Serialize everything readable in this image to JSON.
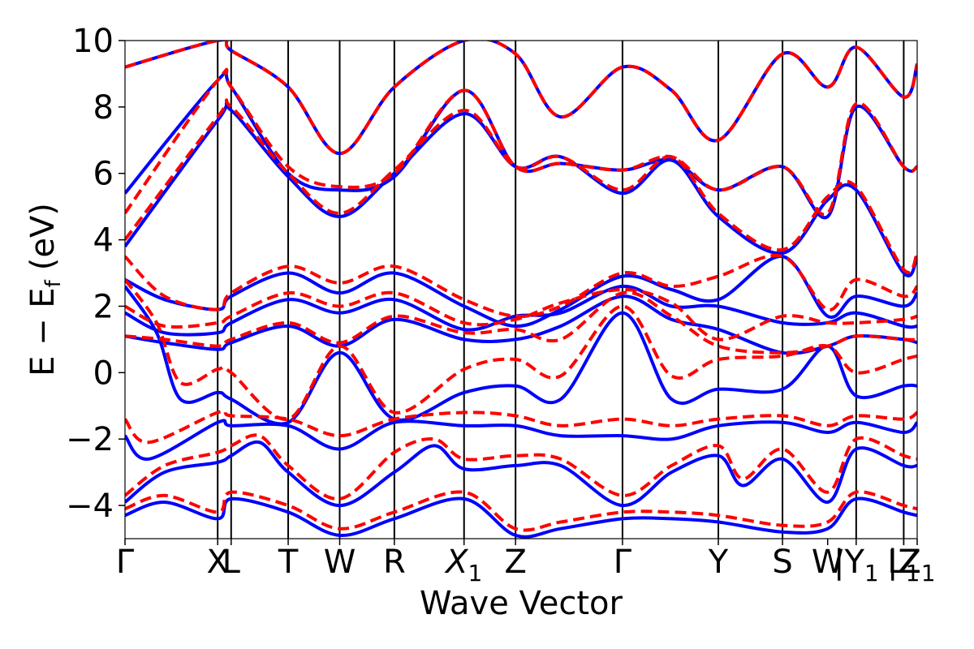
{
  "chart_data": {
    "type": "line",
    "title": "",
    "xlabel": "Wave Vector",
    "ylabel": "E − Ef (eV)",
    "ylabel_parts": {
      "main": "E − E",
      "sub": "f",
      "unit": "(eV)"
    },
    "ylim": [
      -5,
      10
    ],
    "y_ticks": [
      -4,
      -2,
      0,
      2,
      4,
      6,
      8,
      10
    ],
    "y_tick_labels": [
      "−4",
      "−2",
      "0",
      "2",
      "4",
      "6",
      "8",
      "10"
    ],
    "x_range": [
      0,
      100
    ],
    "high_symmetry_points": [
      {
        "label": "Γ",
        "x": 0
      },
      {
        "label": "X",
        "x": 11.7
      },
      {
        "label": "L",
        "x": 13.4
      },
      {
        "label": "T",
        "x": 20.6
      },
      {
        "label": "W",
        "x": 27.1
      },
      {
        "label": "R",
        "x": 34.0
      },
      {
        "label": "X",
        "sub": "1",
        "x": 42.8
      },
      {
        "label": "Z",
        "x": 49.3
      },
      {
        "label": "Γ",
        "x": 62.8
      },
      {
        "label": "Y",
        "x": 74.9
      },
      {
        "label": "S",
        "x": 83.0
      },
      {
        "label": "W",
        "x": 88.7
      },
      {
        "label": "|Y",
        "sub": "1",
        "x": 92.3
      },
      {
        "label": "L",
        "sub": "1",
        "x": 98.3
      },
      {
        "label": "|Z",
        "x": 98.3
      },
      {
        "label": "Z",
        "sub": "1",
        "x": 100
      }
    ],
    "vertical_lines_x": [
      11.7,
      13.4,
      20.6,
      27.1,
      34.0,
      42.8,
      49.3,
      62.8,
      74.9,
      83.0,
      92.3,
      98.3
    ],
    "series": [
      {
        "color": "#0000ff",
        "dash": false,
        "bands": [
          {
            "x": [
              0,
              5,
              11.7,
              13.4,
              20.6,
              27.1,
              34.0,
              42.8,
              49.3,
              55,
              62.8,
              69,
              74.9,
              83.0,
              88.7,
              92.3,
              98.3,
              100
            ],
            "y": [
              2.8,
              2.2,
              1.9,
              2.3,
              3.0,
              2.4,
              3.0,
              2.0,
              1.4,
              1.9,
              2.9,
              2.5,
              2.2,
              3.5,
              1.7,
              2.3,
              2.0,
              2.4
            ]
          },
          {
            "x": [
              0,
              5,
              11.7,
              13.4,
              20.6,
              27.1,
              34.0,
              42.8,
              49.3,
              55,
              62.8,
              69,
              74.9,
              83.0,
              88.7,
              92.3,
              98.3,
              100
            ],
            "y": [
              1.8,
              1.2,
              1.2,
              1.5,
              2.2,
              1.8,
              2.2,
              1.3,
              1.7,
              1.8,
              2.6,
              2.0,
              2.0,
              1.5,
              1.5,
              1.8,
              1.4,
              1.4
            ]
          },
          {
            "x": [
              0,
              5,
              11.7,
              13.4,
              20.6,
              27.1,
              34.0,
              42.8,
              49.3,
              55,
              62.8,
              69,
              74.9,
              83.0,
              88.7,
              92.3,
              98.3,
              100
            ],
            "y": [
              1.1,
              0.9,
              0.7,
              0.9,
              1.4,
              0.8,
              1.6,
              1.0,
              1.0,
              1.4,
              2.3,
              1.6,
              1.3,
              0.6,
              0.8,
              1.1,
              1.0,
              0.9
            ]
          },
          {
            "x": [
              0,
              4,
              7,
              11.7,
              13.4,
              20.6,
              27.1,
              34.0,
              42.8,
              49.3,
              55,
              62.8,
              69,
              74.9,
              83.0,
              88.7,
              92.3,
              98.3,
              100
            ],
            "y": [
              2.6,
              1.2,
              -0.8,
              -0.6,
              -0.8,
              -1.5,
              0.6,
              -1.4,
              -0.6,
              -0.4,
              -0.8,
              1.8,
              -0.8,
              -0.5,
              -0.5,
              0.8,
              -0.7,
              -0.4,
              -0.4
            ]
          },
          {
            "x": [
              0,
              3,
              11.7,
              13.4,
              20.6,
              27.1,
              34.0,
              42.8,
              49.3,
              55,
              62.8,
              69,
              74.9,
              83.0,
              88.7,
              92.3,
              98.3,
              100
            ],
            "y": [
              -1.9,
              -2.6,
              -1.5,
              -1.6,
              -1.6,
              -2.3,
              -1.5,
              -1.6,
              -1.6,
              -1.9,
              -1.9,
              -2.0,
              -1.6,
              -1.5,
              -1.8,
              -1.5,
              -1.8,
              -1.5
            ]
          },
          {
            "x": [
              0,
              5,
              11.7,
              13.4,
              17,
              20.6,
              27.1,
              34.0,
              39,
              42.8,
              49.3,
              55,
              62.8,
              69,
              74.9,
              78,
              83.0,
              88.7,
              92.3,
              98.3,
              100
            ],
            "y": [
              -3.9,
              -3.0,
              -2.7,
              -2.5,
              -2.1,
              -3.0,
              -4.0,
              -3.0,
              -2.2,
              -2.9,
              -2.8,
              -2.8,
              -4.0,
              -3.0,
              -2.5,
              -3.4,
              -2.6,
              -3.9,
              -2.3,
              -2.8,
              -2.8
            ]
          },
          {
            "x": [
              0,
              5,
              11.7,
              13.4,
              20.6,
              27.1,
              34.0,
              42.8,
              49.3,
              55,
              62.8,
              69,
              74.9,
              83.0,
              88.7,
              92.3,
              98.3,
              100
            ],
            "y": [
              -4.3,
              -3.9,
              -4.4,
              -3.8,
              -4.2,
              -4.9,
              -4.4,
              -3.8,
              -4.9,
              -4.7,
              -4.4,
              -4.4,
              -4.5,
              -4.8,
              -4.7,
              -3.8,
              -4.2,
              -4.3
            ]
          },
          {
            "x": [
              0,
              11.7,
              13.4,
              20.6,
              27.1,
              34.0,
              42.8,
              49.3,
              55,
              62.8,
              69,
              74.9,
              83.0,
              88.7,
              92.3,
              98.3,
              100
            ],
            "y": [
              3.8,
              7.6,
              7.9,
              5.9,
              4.7,
              6.0,
              7.8,
              6.2,
              6.5,
              5.4,
              6.4,
              4.7,
              3.6,
              5.2,
              5.5,
              3.0,
              3.5
            ]
          },
          {
            "x": [
              0,
              11.7,
              13.4,
              20.6,
              27.1,
              34.0,
              42.8,
              49.3,
              55,
              62.8,
              69,
              74.9,
              83.0,
              88.7,
              92.3,
              98.3,
              100
            ],
            "y": [
              5.4,
              8.8,
              8.6,
              6.0,
              5.5,
              5.9,
              8.5,
              6.2,
              6.3,
              6.1,
              6.4,
              5.5,
              6.2,
              4.7,
              8.0,
              6.2,
              6.2
            ]
          },
          {
            "x": [
              0,
              11.7,
              13.4,
              20.6,
              27.1,
              34.0,
              42.8,
              49.3,
              55,
              62.8,
              69,
              74.9,
              83.0,
              88.7,
              92.3,
              98.3,
              100
            ],
            "y": [
              9.2,
              10.0,
              9.7,
              8.6,
              6.6,
              8.6,
              10.0,
              9.6,
              7.7,
              9.2,
              8.5,
              7.0,
              9.6,
              8.6,
              9.8,
              8.3,
              9.3
            ]
          }
        ]
      },
      {
        "color": "#ff0000",
        "dash": true,
        "bands": [
          {
            "x": [
              0,
              5,
              11.7,
              13.4,
              20.6,
              27.1,
              34.0,
              42.8,
              49.3,
              55,
              62.8,
              69,
              74.9,
              83.0,
              88.7,
              92.3,
              98.3,
              100
            ],
            "y": [
              3.5,
              2.3,
              1.9,
              2.4,
              3.2,
              2.7,
              3.2,
              2.2,
              1.7,
              2.0,
              3.0,
              2.6,
              2.9,
              3.5,
              1.9,
              2.8,
              2.3,
              2.6
            ]
          },
          {
            "x": [
              0,
              5,
              11.7,
              13.4,
              20.6,
              27.1,
              34.0,
              42.8,
              49.3,
              55,
              62.8,
              69,
              74.9,
              83.0,
              88.7,
              92.3,
              98.3,
              100
            ],
            "y": [
              2.0,
              1.4,
              1.5,
              1.7,
              2.4,
              2.0,
              2.4,
              1.5,
              1.6,
              2.1,
              2.5,
              2.1,
              1.0,
              1.7,
              1.5,
              1.5,
              1.6,
              1.7
            ]
          },
          {
            "x": [
              0,
              5,
              11.7,
              13.4,
              20.6,
              27.1,
              34.0,
              42.8,
              49.3,
              55,
              62.8,
              69,
              74.9,
              83.0,
              88.7,
              92.3,
              98.3,
              100
            ],
            "y": [
              1.1,
              1.0,
              0.8,
              1.0,
              1.5,
              0.9,
              1.7,
              1.2,
              1.3,
              1.0,
              2.4,
              1.7,
              0.8,
              0.6,
              0.8,
              1.1,
              1.0,
              1.0
            ]
          },
          {
            "x": [
              0,
              4,
              7,
              11.7,
              13.4,
              20.6,
              27.1,
              34.0,
              42.8,
              49.3,
              55,
              62.8,
              69,
              74.9,
              83.0,
              88.7,
              92.3,
              98.3,
              100
            ],
            "y": [
              2.8,
              1.5,
              -0.3,
              0.1,
              0.0,
              -1.4,
              0.8,
              -1.2,
              0.1,
              0.4,
              -0.1,
              2.0,
              -0.1,
              0.4,
              0.5,
              0.8,
              0.0,
              0.4,
              0.5
            ]
          },
          {
            "x": [
              0,
              3,
              11.7,
              13.4,
              20.6,
              27.1,
              34.0,
              42.8,
              49.3,
              55,
              62.8,
              69,
              74.9,
              83.0,
              88.7,
              92.3,
              98.3,
              100
            ],
            "y": [
              -1.4,
              -2.1,
              -1.2,
              -1.3,
              -1.4,
              -1.9,
              -1.4,
              -1.2,
              -1.3,
              -1.6,
              -1.4,
              -1.6,
              -1.4,
              -1.3,
              -1.6,
              -1.3,
              -1.4,
              -1.2
            ]
          },
          {
            "x": [
              0,
              5,
              11.7,
              13.4,
              17,
              20.6,
              27.1,
              34.0,
              39,
              42.8,
              49.3,
              55,
              62.8,
              69,
              74.9,
              78,
              83.0,
              88.7,
              92.3,
              98.3,
              100
            ],
            "y": [
              -3.7,
              -2.8,
              -2.4,
              -2.2,
              -1.9,
              -2.8,
              -3.8,
              -2.4,
              -2.0,
              -2.6,
              -2.5,
              -2.6,
              -3.7,
              -2.8,
              -2.2,
              -3.2,
              -2.3,
              -3.6,
              -2.0,
              -2.5,
              -2.6
            ]
          },
          {
            "x": [
              0,
              5,
              11.7,
              13.4,
              20.6,
              27.1,
              34.0,
              42.8,
              49.3,
              55,
              62.8,
              69,
              74.9,
              83.0,
              88.7,
              92.3,
              98.3,
              100
            ],
            "y": [
              -4.1,
              -3.7,
              -4.2,
              -3.6,
              -4.0,
              -4.7,
              -4.2,
              -3.6,
              -4.7,
              -4.5,
              -4.2,
              -4.2,
              -4.3,
              -4.6,
              -4.5,
              -3.6,
              -4.0,
              -4.1
            ]
          },
          {
            "x": [
              0,
              11.7,
              13.4,
              20.6,
              27.1,
              34.0,
              42.8,
              49.3,
              55,
              62.8,
              69,
              74.9,
              83.0,
              88.7,
              92.3,
              98.3,
              100
            ],
            "y": [
              4.0,
              7.7,
              8.0,
              6.0,
              4.8,
              6.1,
              7.9,
              6.2,
              6.5,
              5.5,
              6.5,
              4.8,
              3.7,
              5.3,
              5.6,
              3.1,
              3.6
            ]
          },
          {
            "x": [
              0,
              11.7,
              13.4,
              20.6,
              27.1,
              34.0,
              42.8,
              49.3,
              55,
              62.8,
              69,
              74.9,
              83.0,
              88.7,
              92.3,
              98.3,
              100
            ],
            "y": [
              4.8,
              8.8,
              8.6,
              6.2,
              5.6,
              6.0,
              8.5,
              6.2,
              6.3,
              6.1,
              6.5,
              5.5,
              6.2,
              4.8,
              8.1,
              6.2,
              6.2
            ]
          },
          {
            "x": [
              0,
              11.7,
              13.4,
              20.6,
              27.1,
              34.0,
              42.8,
              49.3,
              55,
              62.8,
              69,
              74.9,
              83.0,
              88.7,
              92.3,
              98.3,
              100
            ],
            "y": [
              9.2,
              10.0,
              9.7,
              8.6,
              6.6,
              8.6,
              10.0,
              9.6,
              7.7,
              9.2,
              8.5,
              7.0,
              9.6,
              8.6,
              9.8,
              8.3,
              9.3
            ]
          }
        ]
      }
    ]
  }
}
